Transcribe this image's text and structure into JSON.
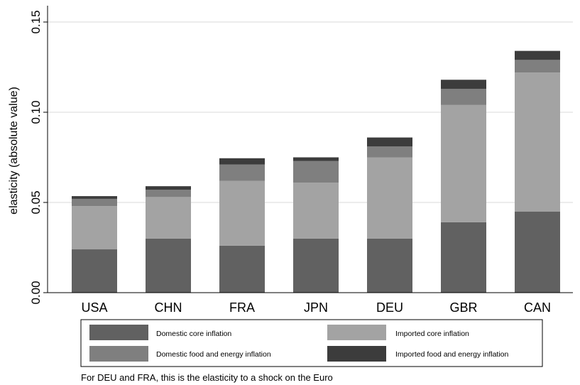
{
  "chart_data": {
    "type": "bar",
    "stacked": true,
    "categories": [
      "USA",
      "CHN",
      "FRA",
      "JPN",
      "DEU",
      "GBR",
      "CAN"
    ],
    "series": [
      {
        "name": "Domestic core inflation",
        "color": "#616161",
        "values": [
          0.024,
          0.03,
          0.026,
          0.03,
          0.03,
          0.039,
          0.045
        ]
      },
      {
        "name": "Imported core inflation",
        "color": "#a3a3a3",
        "values": [
          0.024,
          0.023,
          0.036,
          0.031,
          0.045,
          0.065,
          0.077
        ]
      },
      {
        "name": "Domestic food and energy inflation",
        "color": "#7f7f7f",
        "values": [
          0.004,
          0.004,
          0.009,
          0.012,
          0.006,
          0.009,
          0.007
        ]
      },
      {
        "name": "Imported food and energy inflation",
        "color": "#3c3c3c",
        "values": [
          0.0015,
          0.002,
          0.0035,
          0.002,
          0.005,
          0.005,
          0.005
        ]
      }
    ],
    "ylabel": "elasticity (absolute value)",
    "ylim": [
      0,
      0.15
    ],
    "yticks": [
      "0.00",
      "0.05",
      "0.10",
      "0.15"
    ],
    "ytick_values": [
      0,
      0.05,
      0.1,
      0.15
    ],
    "grid": true,
    "legend_placement": "bottom",
    "note": "For DEU and FRA, this is the elasticity to a shock on the Euro"
  }
}
